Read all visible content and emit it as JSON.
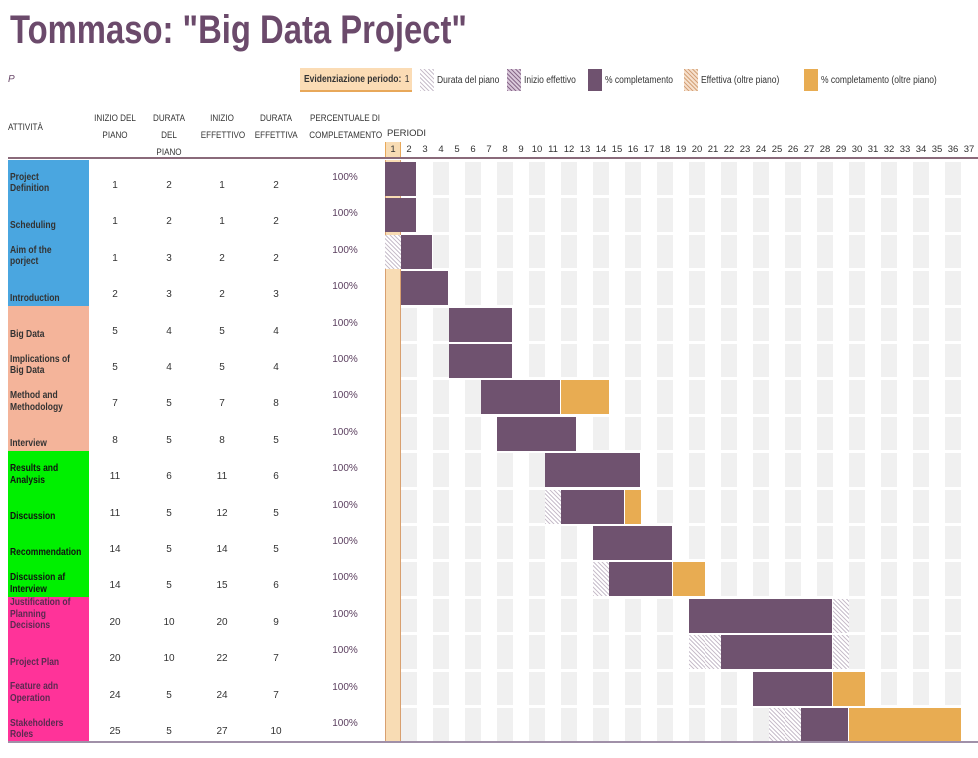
{
  "title": "Tommaso: \"Big Data Project\"",
  "subtitle": "P",
  "highlight": {
    "label": "Evidenziazione periodo:",
    "value": "1"
  },
  "legend": [
    {
      "label": "Durata del piano",
      "pattern": "plan"
    },
    {
      "label": "Inizio effettivo",
      "pattern": "actual"
    },
    {
      "label": "% completamento",
      "color": "#6f526f"
    },
    {
      "label": "Effettiva (oltre piano)",
      "pattern": "ext"
    },
    {
      "label": "% completamento (oltre piano)",
      "color": "#e8ac52"
    }
  ],
  "columns": {
    "activity": "ATTIVITÀ",
    "plan_start": [
      "INIZIO DEL",
      "PIANO"
    ],
    "plan_dur": [
      "DURATA DEL",
      "PIANO"
    ],
    "act_start": [
      "INIZIO",
      "EFFETTIVO"
    ],
    "act_dur": [
      "DURATA",
      "EFFETTIVA"
    ],
    "pct": [
      "PERCENTUALE DI",
      "COMPLETAMENTO"
    ],
    "periods": "PERIODI"
  },
  "period_count": 37,
  "highlighted_period": 1,
  "colors": {
    "complete": "#6f526f",
    "beyond": "#e8ac52",
    "highlight": "#f8dcb4",
    "blue": "#4aa6e0",
    "salmon": "#f4b49a",
    "green": "#00f000",
    "pink": "#ff3399"
  },
  "tasks": [
    {
      "name": "Project Definition",
      "group": "blue",
      "plan_start": 1,
      "plan_dur": 2,
      "act_start": 1,
      "act_dur": 2,
      "pct": "100%"
    },
    {
      "name": "Scheduling",
      "group": "blue",
      "plan_start": 1,
      "plan_dur": 2,
      "act_start": 1,
      "act_dur": 2,
      "pct": "100%"
    },
    {
      "name": "Aim of the porject",
      "group": "blue",
      "plan_start": 1,
      "plan_dur": 3,
      "act_start": 2,
      "act_dur": 2,
      "pct": "100%"
    },
    {
      "name": "Introduction",
      "group": "blue",
      "plan_start": 2,
      "plan_dur": 3,
      "act_start": 2,
      "act_dur": 3,
      "pct": "100%"
    },
    {
      "name": "Big Data",
      "group": "salmon",
      "plan_start": 5,
      "plan_dur": 4,
      "act_start": 5,
      "act_dur": 4,
      "pct": "100%"
    },
    {
      "name": "Implications of Big Data",
      "group": "salmon",
      "plan_start": 5,
      "plan_dur": 4,
      "act_start": 5,
      "act_dur": 4,
      "pct": "100%"
    },
    {
      "name": "Method and Methodology",
      "group": "salmon",
      "plan_start": 7,
      "plan_dur": 5,
      "act_start": 7,
      "act_dur": 8,
      "pct": "100%"
    },
    {
      "name": "Interview",
      "group": "salmon",
      "plan_start": 8,
      "plan_dur": 5,
      "act_start": 8,
      "act_dur": 5,
      "pct": "100%"
    },
    {
      "name": "Results and Analysis",
      "group": "green",
      "plan_start": 11,
      "plan_dur": 6,
      "act_start": 11,
      "act_dur": 6,
      "pct": "100%"
    },
    {
      "name": "Discussion",
      "group": "green",
      "plan_start": 11,
      "plan_dur": 5,
      "act_start": 12,
      "act_dur": 5,
      "pct": "100%"
    },
    {
      "name": "Recommendation",
      "group": "green",
      "plan_start": 14,
      "plan_dur": 5,
      "act_start": 14,
      "act_dur": 5,
      "pct": "100%"
    },
    {
      "name": "Discussion af Interview",
      "group": "green",
      "plan_start": 14,
      "plan_dur": 5,
      "act_start": 15,
      "act_dur": 6,
      "pct": "100%"
    },
    {
      "name": "Justification of Planning Decisions",
      "group": "pink",
      "plan_start": 20,
      "plan_dur": 10,
      "act_start": 20,
      "act_dur": 9,
      "pct": "100%"
    },
    {
      "name": "Project Plan",
      "group": "pink",
      "plan_start": 20,
      "plan_dur": 10,
      "act_start": 22,
      "act_dur": 7,
      "pct": "100%"
    },
    {
      "name": "Feature adn Operation",
      "group": "pink",
      "plan_start": 24,
      "plan_dur": 5,
      "act_start": 24,
      "act_dur": 7,
      "pct": "100%"
    },
    {
      "name": "Stakeholders Roles",
      "group": "pink",
      "plan_start": 25,
      "plan_dur": 5,
      "act_start": 27,
      "act_dur": 10,
      "pct": "100%"
    }
  ]
}
